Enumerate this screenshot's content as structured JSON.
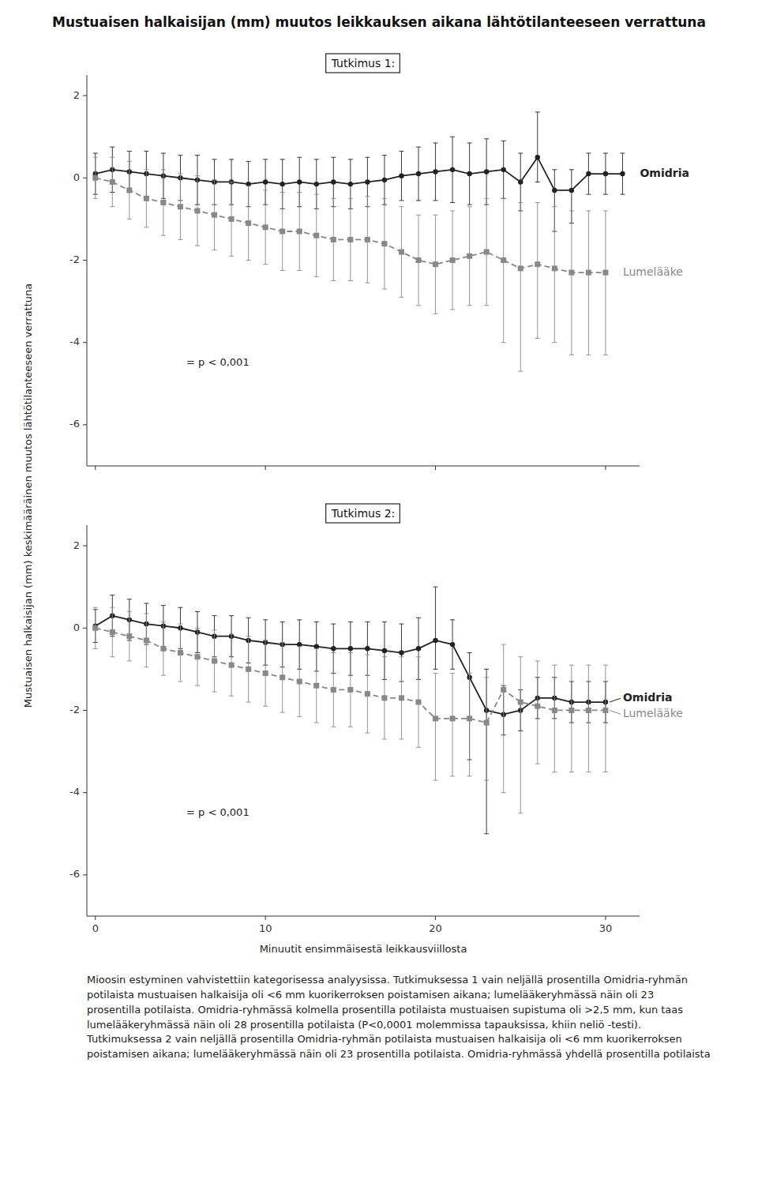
{
  "chart_data": [
    {
      "type": "line",
      "title": "Mustuaisen halkaisijan (mm) muutos leikkauksen aikana lähtötilanteeseen verrattuna",
      "subtitle": "Tutkimus 1:",
      "ylabel": "Mustuaisen halkaisijan (mm) keskimääräinen muutos lähtötilanteeseen verrattuna",
      "annotations": [
        "= p < 0,001"
      ],
      "xlim": [
        -0.5,
        32
      ],
      "xticks": [
        0,
        10,
        20,
        30
      ],
      "ylim": [
        -7,
        2.5
      ],
      "yticks": [
        -6,
        -4,
        -2,
        0,
        2
      ],
      "tick_labels": "y",
      "grid": false,
      "series": [
        {
          "name": "Omidria",
          "color": "#222222",
          "marker": "circle",
          "line_style": "solid",
          "x": [
            0,
            1,
            2,
            3,
            4,
            5,
            6,
            7,
            8,
            9,
            10,
            11,
            12,
            13,
            14,
            15,
            16,
            17,
            18,
            19,
            20,
            21,
            22,
            23,
            24,
            25,
            26,
            27,
            28,
            29,
            30,
            31
          ],
          "values": [
            0.1,
            0.2,
            0.15,
            0.1,
            0.05,
            0.0,
            -0.05,
            -0.1,
            -0.1,
            -0.15,
            -0.1,
            -0.15,
            -0.1,
            -0.15,
            -0.1,
            -0.15,
            -0.1,
            -0.05,
            0.05,
            0.1,
            0.15,
            0.2,
            0.1,
            0.15,
            0.2,
            -0.1,
            0.5,
            -0.3,
            -0.3,
            0.1,
            0.1,
            0.1
          ],
          "error_pos": [
            0.5,
            0.55,
            0.5,
            0.55,
            0.55,
            0.55,
            0.6,
            0.55,
            0.55,
            0.55,
            0.55,
            0.6,
            0.6,
            0.6,
            0.6,
            0.6,
            0.6,
            0.6,
            0.6,
            0.65,
            0.7,
            0.8,
            0.75,
            0.8,
            0.7,
            0.7,
            1.1,
            0.5,
            0.5,
            0.5,
            0.5,
            0.5
          ],
          "error_neg": [
            0.5,
            0.55,
            0.5,
            0.55,
            0.55,
            0.55,
            0.6,
            0.55,
            0.55,
            0.55,
            0.55,
            0.6,
            0.6,
            0.6,
            0.6,
            0.6,
            0.6,
            0.6,
            0.6,
            0.65,
            0.7,
            0.8,
            0.75,
            0.8,
            0.7,
            0.7,
            0.6,
            1.0,
            0.8,
            0.5,
            0.5,
            0.5
          ]
        },
        {
          "name": "Lumelääke",
          "color": "#888888",
          "marker": "square",
          "line_style": "dashed",
          "x": [
            0,
            1,
            2,
            3,
            4,
            5,
            6,
            7,
            8,
            9,
            10,
            11,
            12,
            13,
            14,
            15,
            16,
            17,
            18,
            19,
            20,
            21,
            22,
            23,
            24,
            25,
            26,
            27,
            28,
            29,
            30
          ],
          "values": [
            0.0,
            -0.1,
            -0.3,
            -0.5,
            -0.6,
            -0.7,
            -0.8,
            -0.9,
            -1.0,
            -1.1,
            -1.2,
            -1.3,
            -1.3,
            -1.4,
            -1.5,
            -1.5,
            -1.5,
            -1.6,
            -1.8,
            -2.0,
            -2.1,
            -2.0,
            -1.9,
            -1.8,
            -2.0,
            -2.2,
            -2.1,
            -2.2,
            -2.3,
            -2.3,
            -2.3
          ],
          "error_pos": [
            0.5,
            0.6,
            0.7,
            0.7,
            0.8,
            0.8,
            0.85,
            0.85,
            0.9,
            0.9,
            0.9,
            0.95,
            0.95,
            1.0,
            1.0,
            1.0,
            1.05,
            1.1,
            1.1,
            1.1,
            1.2,
            1.2,
            1.2,
            1.3,
            1.5,
            1.6,
            1.5,
            1.5,
            1.5,
            1.5,
            1.5
          ],
          "error_neg": [
            0.5,
            0.6,
            0.7,
            0.7,
            0.8,
            0.8,
            0.85,
            0.85,
            0.9,
            0.9,
            0.9,
            0.95,
            0.95,
            1.0,
            1.0,
            1.0,
            1.05,
            1.1,
            1.1,
            1.1,
            1.2,
            1.2,
            1.2,
            1.3,
            2.0,
            2.5,
            1.8,
            1.8,
            2.0,
            2.0,
            2.0
          ]
        }
      ]
    },
    {
      "type": "line",
      "subtitle": "Tutkimus 2:",
      "xlabel": "Minuutit ensimmäisestä leikkausviillosta",
      "annotations": [
        "= p < 0,001"
      ],
      "caption": "Mioosin estyminen vahvistettiin kategorisessa analyysissa. Tutkimuksessa 1 vain neljällä prosentilla Omidria-ryhmän potilaista mustuaisen halkaisija oli <6 mm kuorikerroksen poistamisen aikana; lumelääkeryhmässä näin oli 23 prosentilla potilaista. Omidria-ryhmässä kolmella prosentilla potilaista mustuaisen supistuma oli >2,5 mm, kun taas lumelääkeryhmässä näin oli 28 prosentilla potilaista (P<0,0001 molemmissa tapauksissa, khiin neliö -testi). Tutkimuksessa 2 vain neljällä prosentilla Omidria-ryhmän potilaista mustuaisen halkaisija oli <6 mm kuorikerroksen poistamisen aikana; lumelääkeryhmässä näin oli 23 prosentilla potilaista. Omidria-ryhmässä yhdellä prosentilla potilaista",
      "xlim": [
        -0.5,
        32
      ],
      "xticks": [
        0,
        10,
        20,
        30
      ],
      "ylim": [
        -7,
        2.5
      ],
      "yticks": [
        -6,
        -4,
        -2,
        0,
        2
      ],
      "tick_labels": true,
      "grid": false,
      "series": [
        {
          "name": "Omidria",
          "color": "#222222",
          "marker": "circle",
          "line_style": "solid",
          "x": [
            0,
            1,
            2,
            3,
            4,
            5,
            6,
            7,
            8,
            9,
            10,
            11,
            12,
            13,
            14,
            15,
            16,
            17,
            18,
            19,
            20,
            21,
            22,
            23,
            24,
            25,
            26,
            27,
            28,
            29,
            30
          ],
          "values": [
            0.05,
            0.3,
            0.2,
            0.1,
            0.05,
            0.0,
            -0.1,
            -0.2,
            -0.2,
            -0.3,
            -0.35,
            -0.4,
            -0.4,
            -0.45,
            -0.5,
            -0.5,
            -0.5,
            -0.55,
            -0.6,
            -0.5,
            -0.3,
            -0.4,
            -1.2,
            -2.0,
            -2.1,
            -2.0,
            -1.7,
            -1.7,
            -1.8,
            -1.8,
            -1.8
          ],
          "error_pos": [
            0.4,
            0.5,
            0.5,
            0.5,
            0.5,
            0.5,
            0.5,
            0.5,
            0.5,
            0.55,
            0.55,
            0.55,
            0.6,
            0.6,
            0.6,
            0.65,
            0.65,
            0.7,
            0.7,
            0.75,
            1.3,
            0.6,
            0.6,
            1.0,
            0.7,
            0.5,
            0.5,
            0.5,
            0.5,
            0.5,
            0.5
          ],
          "error_neg": [
            0.4,
            0.5,
            0.5,
            0.5,
            0.5,
            0.5,
            0.5,
            0.5,
            0.5,
            0.55,
            0.55,
            0.55,
            0.6,
            0.6,
            0.6,
            0.65,
            0.65,
            0.7,
            0.7,
            0.75,
            0.7,
            0.6,
            2.0,
            3.0,
            0.5,
            0.5,
            0.5,
            0.5,
            0.5,
            0.5,
            0.5
          ]
        },
        {
          "name": "Lumelääke",
          "color": "#888888",
          "marker": "square",
          "line_style": "dashed",
          "x": [
            0,
            1,
            2,
            3,
            4,
            5,
            6,
            7,
            8,
            9,
            10,
            11,
            12,
            13,
            14,
            15,
            16,
            17,
            18,
            19,
            20,
            21,
            22,
            23,
            24,
            25,
            26,
            27,
            28,
            29,
            30
          ],
          "values": [
            0.0,
            -0.1,
            -0.2,
            -0.3,
            -0.5,
            -0.6,
            -0.7,
            -0.8,
            -0.9,
            -1.0,
            -1.1,
            -1.2,
            -1.3,
            -1.4,
            -1.5,
            -1.5,
            -1.6,
            -1.7,
            -1.7,
            -1.8,
            -2.2,
            -2.2,
            -2.2,
            -2.3,
            -1.5,
            -1.8,
            -1.9,
            -2.0,
            -2.0,
            -2.0,
            -2.0
          ],
          "error_pos": [
            0.5,
            0.6,
            0.6,
            0.65,
            0.65,
            0.7,
            0.7,
            0.75,
            0.75,
            0.8,
            0.8,
            0.85,
            0.85,
            0.9,
            0.9,
            0.9,
            0.95,
            1.0,
            1.0,
            1.1,
            1.1,
            1.1,
            1.1,
            1.1,
            1.1,
            1.1,
            1.1,
            1.1,
            1.1,
            1.1,
            1.1
          ],
          "error_neg": [
            0.5,
            0.6,
            0.6,
            0.65,
            0.65,
            0.7,
            0.7,
            0.75,
            0.75,
            0.8,
            0.8,
            0.85,
            0.85,
            0.9,
            0.9,
            0.9,
            0.95,
            1.0,
            1.0,
            1.1,
            1.5,
            1.4,
            1.4,
            1.4,
            2.5,
            2.7,
            1.4,
            1.5,
            1.5,
            1.5,
            1.5
          ]
        }
      ]
    }
  ]
}
